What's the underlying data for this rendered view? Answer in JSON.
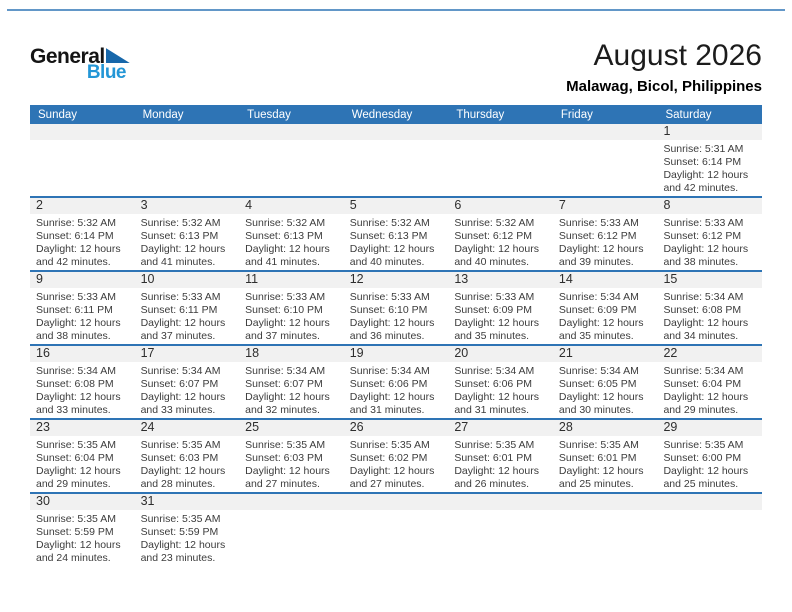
{
  "header": {
    "title": "August 2026",
    "location": "Malawag, Bicol, Philippines"
  },
  "logo": {
    "word1": "General",
    "word2": "Blue",
    "triangle_icon": "flag-triangle"
  },
  "colors": {
    "header_bg": "#2e74b5",
    "line_blue": "#2e74b5",
    "band_bg": "#f1f1f1",
    "logo_blue": "#2396d6",
    "logo_triangle": "#1767aa"
  },
  "calendar": {
    "weekdays": [
      "Sunday",
      "Monday",
      "Tuesday",
      "Wednesday",
      "Thursday",
      "Friday",
      "Saturday"
    ],
    "weeks": [
      [
        null,
        null,
        null,
        null,
        null,
        null,
        {
          "day": "1",
          "lines": [
            "Sunrise: 5:31 AM",
            "Sunset: 6:14 PM",
            "Daylight: 12 hours",
            "and 42 minutes."
          ]
        }
      ],
      [
        {
          "day": "2",
          "lines": [
            "Sunrise: 5:32 AM",
            "Sunset: 6:14 PM",
            "Daylight: 12 hours",
            "and 42 minutes."
          ]
        },
        {
          "day": "3",
          "lines": [
            "Sunrise: 5:32 AM",
            "Sunset: 6:13 PM",
            "Daylight: 12 hours",
            "and 41 minutes."
          ]
        },
        {
          "day": "4",
          "lines": [
            "Sunrise: 5:32 AM",
            "Sunset: 6:13 PM",
            "Daylight: 12 hours",
            "and 41 minutes."
          ]
        },
        {
          "day": "5",
          "lines": [
            "Sunrise: 5:32 AM",
            "Sunset: 6:13 PM",
            "Daylight: 12 hours",
            "and 40 minutes."
          ]
        },
        {
          "day": "6",
          "lines": [
            "Sunrise: 5:32 AM",
            "Sunset: 6:12 PM",
            "Daylight: 12 hours",
            "and 40 minutes."
          ]
        },
        {
          "day": "7",
          "lines": [
            "Sunrise: 5:33 AM",
            "Sunset: 6:12 PM",
            "Daylight: 12 hours",
            "and 39 minutes."
          ]
        },
        {
          "day": "8",
          "lines": [
            "Sunrise: 5:33 AM",
            "Sunset: 6:12 PM",
            "Daylight: 12 hours",
            "and 38 minutes."
          ]
        }
      ],
      [
        {
          "day": "9",
          "lines": [
            "Sunrise: 5:33 AM",
            "Sunset: 6:11 PM",
            "Daylight: 12 hours",
            "and 38 minutes."
          ]
        },
        {
          "day": "10",
          "lines": [
            "Sunrise: 5:33 AM",
            "Sunset: 6:11 PM",
            "Daylight: 12 hours",
            "and 37 minutes."
          ]
        },
        {
          "day": "11",
          "lines": [
            "Sunrise: 5:33 AM",
            "Sunset: 6:10 PM",
            "Daylight: 12 hours",
            "and 37 minutes."
          ]
        },
        {
          "day": "12",
          "lines": [
            "Sunrise: 5:33 AM",
            "Sunset: 6:10 PM",
            "Daylight: 12 hours",
            "and 36 minutes."
          ]
        },
        {
          "day": "13",
          "lines": [
            "Sunrise: 5:33 AM",
            "Sunset: 6:09 PM",
            "Daylight: 12 hours",
            "and 35 minutes."
          ]
        },
        {
          "day": "14",
          "lines": [
            "Sunrise: 5:34 AM",
            "Sunset: 6:09 PM",
            "Daylight: 12 hours",
            "and 35 minutes."
          ]
        },
        {
          "day": "15",
          "lines": [
            "Sunrise: 5:34 AM",
            "Sunset: 6:08 PM",
            "Daylight: 12 hours",
            "and 34 minutes."
          ]
        }
      ],
      [
        {
          "day": "16",
          "lines": [
            "Sunrise: 5:34 AM",
            "Sunset: 6:08 PM",
            "Daylight: 12 hours",
            "and 33 minutes."
          ]
        },
        {
          "day": "17",
          "lines": [
            "Sunrise: 5:34 AM",
            "Sunset: 6:07 PM",
            "Daylight: 12 hours",
            "and 33 minutes."
          ]
        },
        {
          "day": "18",
          "lines": [
            "Sunrise: 5:34 AM",
            "Sunset: 6:07 PM",
            "Daylight: 12 hours",
            "and 32 minutes."
          ]
        },
        {
          "day": "19",
          "lines": [
            "Sunrise: 5:34 AM",
            "Sunset: 6:06 PM",
            "Daylight: 12 hours",
            "and 31 minutes."
          ]
        },
        {
          "day": "20",
          "lines": [
            "Sunrise: 5:34 AM",
            "Sunset: 6:06 PM",
            "Daylight: 12 hours",
            "and 31 minutes."
          ]
        },
        {
          "day": "21",
          "lines": [
            "Sunrise: 5:34 AM",
            "Sunset: 6:05 PM",
            "Daylight: 12 hours",
            "and 30 minutes."
          ]
        },
        {
          "day": "22",
          "lines": [
            "Sunrise: 5:34 AM",
            "Sunset: 6:04 PM",
            "Daylight: 12 hours",
            "and 29 minutes."
          ]
        }
      ],
      [
        {
          "day": "23",
          "lines": [
            "Sunrise: 5:35 AM",
            "Sunset: 6:04 PM",
            "Daylight: 12 hours",
            "and 29 minutes."
          ]
        },
        {
          "day": "24",
          "lines": [
            "Sunrise: 5:35 AM",
            "Sunset: 6:03 PM",
            "Daylight: 12 hours",
            "and 28 minutes."
          ]
        },
        {
          "day": "25",
          "lines": [
            "Sunrise: 5:35 AM",
            "Sunset: 6:03 PM",
            "Daylight: 12 hours",
            "and 27 minutes."
          ]
        },
        {
          "day": "26",
          "lines": [
            "Sunrise: 5:35 AM",
            "Sunset: 6:02 PM",
            "Daylight: 12 hours",
            "and 27 minutes."
          ]
        },
        {
          "day": "27",
          "lines": [
            "Sunrise: 5:35 AM",
            "Sunset: 6:01 PM",
            "Daylight: 12 hours",
            "and 26 minutes."
          ]
        },
        {
          "day": "28",
          "lines": [
            "Sunrise: 5:35 AM",
            "Sunset: 6:01 PM",
            "Daylight: 12 hours",
            "and 25 minutes."
          ]
        },
        {
          "day": "29",
          "lines": [
            "Sunrise: 5:35 AM",
            "Sunset: 6:00 PM",
            "Daylight: 12 hours",
            "and 25 minutes."
          ]
        }
      ],
      [
        {
          "day": "30",
          "lines": [
            "Sunrise: 5:35 AM",
            "Sunset: 5:59 PM",
            "Daylight: 12 hours",
            "and 24 minutes."
          ]
        },
        {
          "day": "31",
          "lines": [
            "Sunrise: 5:35 AM",
            "Sunset: 5:59 PM",
            "Daylight: 12 hours",
            "and 23 minutes."
          ]
        },
        null,
        null,
        null,
        null,
        null
      ]
    ]
  }
}
